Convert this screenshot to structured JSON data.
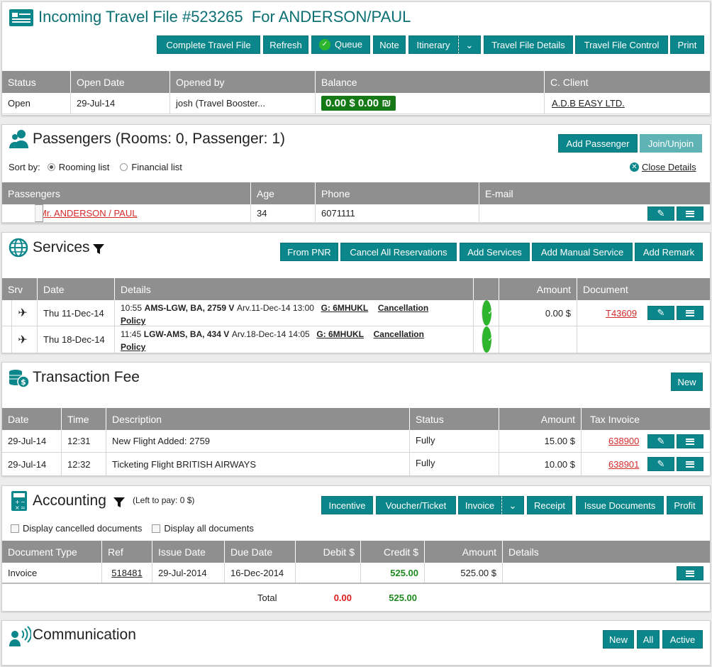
{
  "header": {
    "title": "Incoming Travel File #523265  For ANDERSON/PAUL",
    "buttons": {
      "complete": "Complete Travel File",
      "refresh": "Refresh",
      "queue": "Queue",
      "note": "Note",
      "itinerary": "Itinerary",
      "details": "Travel File Details",
      "control": "Travel File Control",
      "print": "Print"
    }
  },
  "summary": {
    "headers": [
      "Status",
      "Open Date",
      "Opened by",
      "Balance",
      "C. Client"
    ],
    "status": "Open",
    "open_date": "29-Jul-14",
    "opened_by": "josh (Travel Booster...",
    "balance": "0.00 $ 0.00 ₪",
    "client": "A.D.B EASY LTD."
  },
  "passengers": {
    "title": "Passengers (Rooms: 0, Passenger: 1)",
    "add_button": "Add Passenger",
    "join_button": "Join/Unjoin",
    "sort_label": "Sort by:",
    "sort_rooming": "Rooming list",
    "sort_financial": "Financial list",
    "close_details": "Close Details",
    "headers": [
      "Passengers",
      "Age",
      "Phone",
      "E-mail"
    ],
    "rows": [
      {
        "name": "Mr. ANDERSON / PAUL",
        "age": "34",
        "phone": "6071111",
        "email": ""
      }
    ]
  },
  "services": {
    "title": "Services",
    "buttons": {
      "from_pnr": "From PNR",
      "cancel_all": "Cancel All Reservations",
      "add_services": "Add Services",
      "add_manual": "Add Manual Service",
      "add_remark": "Add Remark"
    },
    "headers": [
      "Srv",
      "Date",
      "Details",
      "",
      "Amount",
      "Document"
    ],
    "rows": [
      {
        "date": "Thu 11-Dec-14",
        "time": "10:55",
        "route": "AMS-LGW, BA, 2759 V",
        "arrival": "Arv.11-Dec-14 13:00",
        "pnr": "G: 6MHUKL",
        "policy_a": "Cancellation",
        "policy_b": "Policy",
        "amount": "0.00 $",
        "document": "T43609"
      },
      {
        "date": "Thu 18-Dec-14",
        "time": "11:45",
        "route": "LGW-AMS, BA, 434 V",
        "arrival": "Arv.18-Dec-14 14:05",
        "pnr": "G: 6MHUKL",
        "policy_a": "Cancellation",
        "policy_b": "Policy",
        "amount": "",
        "document": ""
      }
    ]
  },
  "fees": {
    "title": "Transaction Fee",
    "new_button": "New",
    "headers": [
      "Date",
      "Time",
      "Description",
      "Status",
      "Amount",
      "Tax Invoice"
    ],
    "rows": [
      {
        "date": "29-Jul-14",
        "time": "12:31",
        "description": "New Flight Added: 2759",
        "status": "Fully",
        "amount": "15.00 $",
        "invoice": "638900"
      },
      {
        "date": "29-Jul-14",
        "time": "12:32",
        "description": "Ticketing Flight BRITISH AIRWAYS",
        "status": "Fully",
        "amount": "10.00 $",
        "invoice": "638901"
      }
    ]
  },
  "accounting": {
    "title": "Accounting",
    "left_to_pay": "(Left to pay: 0 $)",
    "buttons": {
      "incentive": "Incentive",
      "voucher": "Voucher/Ticket",
      "invoice": "Invoice",
      "receipt": "Receipt",
      "issue": "Issue Documents",
      "profit": "Profit"
    },
    "display_cancelled": "Display cancelled documents",
    "display_all": "Display all documents",
    "headers": [
      "Document Type",
      "Ref",
      "Issue Date",
      "Due Date",
      "Debit $",
      "Credit $",
      "Amount",
      "Details"
    ],
    "rows": [
      {
        "type": "Invoice",
        "ref": "518481",
        "issue": "29-Jul-2014",
        "due": "16-Dec-2014",
        "debit": "",
        "credit": "525.00",
        "amount": "525.00 $"
      }
    ],
    "total_label": "Total",
    "total_debit": "0.00",
    "total_credit": "525.00"
  },
  "communication": {
    "title": "Communication",
    "buttons": {
      "new": "New",
      "all": "All",
      "active": "Active"
    }
  },
  "colors": {
    "accent": "#0b868a",
    "header_bg": "#8f8f8f",
    "link_red": "#d42a2a",
    "credit_green": "#1f8a1f",
    "balance_bg": "#157a15"
  }
}
